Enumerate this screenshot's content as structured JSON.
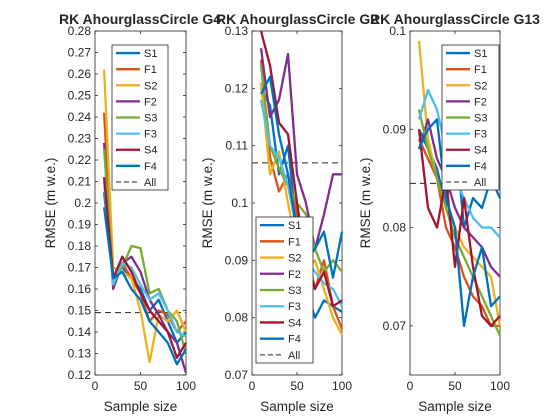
{
  "colors": {
    "S1": "#0072BD",
    "F1": "#D95319",
    "S2": "#EDB120",
    "F2": "#7E2F8E",
    "S3": "#77AC30",
    "F3": "#4DBEEE",
    "S4": "#A2142F",
    "F4": "#0072BD",
    "All": "#262626"
  },
  "chart_data": [
    {
      "type": "line",
      "title": "RK AhourglassCircle G4",
      "xlabel": "Sample size",
      "ylabel": "RMSE (m w.e.)",
      "xlim": [
        0,
        100
      ],
      "ylim": [
        0.12,
        0.28
      ],
      "xticks": [
        "0",
        "50",
        "100"
      ],
      "yticks": [
        "0.12",
        "0.13",
        "0.14",
        "0.15",
        "0.16",
        "0.17",
        "0.18",
        "0.19",
        "0.2",
        "0.21",
        "0.22",
        "0.23",
        "0.24",
        "0.25",
        "0.26",
        "0.27",
        "0.28"
      ],
      "x": [
        10,
        20,
        30,
        40,
        50,
        60,
        70,
        80,
        90,
        100
      ],
      "series": [
        {
          "name": "S1",
          "values": [
            0.205,
            0.165,
            0.17,
            0.165,
            0.16,
            0.15,
            0.155,
            0.145,
            0.135,
            0.14
          ]
        },
        {
          "name": "F1",
          "values": [
            0.242,
            0.165,
            0.172,
            0.165,
            0.158,
            0.145,
            0.15,
            0.148,
            0.14,
            0.145
          ]
        },
        {
          "name": "S2",
          "values": [
            0.262,
            0.17,
            0.168,
            0.165,
            0.15,
            0.126,
            0.148,
            0.145,
            0.15,
            0.14
          ]
        },
        {
          "name": "F2",
          "values": [
            0.228,
            0.16,
            0.172,
            0.175,
            0.168,
            0.155,
            0.148,
            0.14,
            0.135,
            0.121
          ]
        },
        {
          "name": "S3",
          "values": [
            0.225,
            0.165,
            0.17,
            0.18,
            0.179,
            0.158,
            0.16,
            0.15,
            0.145,
            0.13
          ]
        },
        {
          "name": "F3",
          "values": [
            0.21,
            0.162,
            0.172,
            0.17,
            0.162,
            0.155,
            0.158,
            0.15,
            0.14,
            0.138
          ]
        },
        {
          "name": "S4",
          "values": [
            0.212,
            0.165,
            0.175,
            0.168,
            0.158,
            0.15,
            0.145,
            0.14,
            0.128,
            0.135
          ]
        },
        {
          "name": "F4",
          "values": [
            0.198,
            0.165,
            0.168,
            0.16,
            0.155,
            0.145,
            0.14,
            0.135,
            0.125,
            0.132
          ]
        }
      ],
      "all": 0.149,
      "legend": [
        "S1",
        "F1",
        "S2",
        "F2",
        "S3",
        "F3",
        "S4",
        "F4",
        "All"
      ],
      "legend_placement": "top-right"
    },
    {
      "type": "line",
      "title": "RK AhourglassCircle G2",
      "xlabel": "Sample size",
      "ylabel": "RMSE (m w.e.)",
      "xlim": [
        0,
        100
      ],
      "ylim": [
        0.07,
        0.13
      ],
      "xticks": [
        "0",
        "50",
        "100"
      ],
      "yticks": [
        "0.07",
        "0.08",
        "0.09",
        "0.1",
        "0.11",
        "0.12",
        "0.13"
      ],
      "x": [
        10,
        20,
        30,
        40,
        50,
        60,
        70,
        80,
        90,
        100
      ],
      "series": [
        {
          "name": "S1",
          "values": [
            0.12,
            0.117,
            0.105,
            0.11,
            0.095,
            0.085,
            0.08,
            0.083,
            0.082,
            0.081
          ]
        },
        {
          "name": "F1",
          "values": [
            0.125,
            0.108,
            0.102,
            0.105,
            0.098,
            0.092,
            0.085,
            0.09,
            0.082,
            0.078
          ]
        },
        {
          "name": "S2",
          "values": [
            0.121,
            0.105,
            0.109,
            0.1,
            0.092,
            0.088,
            0.09,
            0.085,
            0.08,
            0.077
          ]
        },
        {
          "name": "F2",
          "values": [
            0.127,
            0.115,
            0.118,
            0.126,
            0.105,
            0.1,
            0.092,
            0.098,
            0.105,
            0.105
          ]
        },
        {
          "name": "S3",
          "values": [
            0.124,
            0.11,
            0.106,
            0.103,
            0.1,
            0.098,
            0.092,
            0.088,
            0.09,
            0.088
          ]
        },
        {
          "name": "F3",
          "values": [
            0.118,
            0.11,
            0.108,
            0.103,
            0.095,
            0.09,
            0.088,
            0.086,
            0.085,
            0.082
          ]
        },
        {
          "name": "S4",
          "values": [
            0.13,
            0.124,
            0.114,
            0.112,
            0.1,
            0.09,
            0.085,
            0.088,
            0.082,
            0.083
          ]
        },
        {
          "name": "F4",
          "values": [
            0.119,
            0.122,
            0.112,
            0.105,
            0.095,
            0.09,
            0.092,
            0.095,
            0.087,
            0.095
          ]
        }
      ],
      "all": 0.107,
      "legend": [
        "S1",
        "F1",
        "S2",
        "F2",
        "S3",
        "F3",
        "S4",
        "F4",
        "All"
      ],
      "legend_placement": "bottom-right"
    },
    {
      "type": "line",
      "title": "RK AhourglassCircle G13",
      "xlabel": "Sample size",
      "ylabel": "RMSE (m w.e.)",
      "xlim": [
        0,
        100
      ],
      "ylim": [
        0.065,
        0.1
      ],
      "xticks": [
        "0",
        "50",
        "100"
      ],
      "yticks": [
        "0.07",
        "0.08",
        "0.09",
        "0.1"
      ],
      "x": [
        10,
        20,
        30,
        40,
        50,
        60,
        70,
        80,
        90,
        100
      ],
      "series": [
        {
          "name": "S1",
          "values": [
            0.09,
            0.088,
            0.086,
            0.082,
            0.09,
            0.08,
            0.083,
            0.082,
            0.085,
            0.083
          ]
        },
        {
          "name": "F1",
          "values": [
            0.089,
            0.087,
            0.085,
            0.08,
            0.078,
            0.075,
            0.073,
            0.072,
            0.07,
            0.07
          ]
        },
        {
          "name": "S2",
          "values": [
            0.099,
            0.089,
            0.085,
            0.082,
            0.08,
            0.078,
            0.077,
            0.076,
            0.075,
            0.07
          ]
        },
        {
          "name": "F2",
          "values": [
            0.088,
            0.091,
            0.087,
            0.085,
            0.082,
            0.08,
            0.079,
            0.078,
            0.076,
            0.075
          ]
        },
        {
          "name": "S3",
          "values": [
            0.092,
            0.088,
            0.085,
            0.082,
            0.079,
            0.077,
            0.075,
            0.073,
            0.071,
            0.069
          ]
        },
        {
          "name": "F3",
          "values": [
            0.091,
            0.094,
            0.092,
            0.088,
            0.085,
            0.083,
            0.081,
            0.08,
            0.08,
            0.079
          ]
        },
        {
          "name": "S4",
          "values": [
            0.09,
            0.082,
            0.08,
            0.085,
            0.076,
            0.083,
            0.076,
            0.071,
            0.07,
            0.071
          ]
        },
        {
          "name": "F4",
          "values": [
            0.088,
            0.09,
            0.091,
            0.083,
            0.08,
            0.07,
            0.075,
            0.078,
            0.072,
            0.073
          ]
        }
      ],
      "all": 0.0845,
      "legend": [
        "S1",
        "F1",
        "S2",
        "F2",
        "S3",
        "F3",
        "S4",
        "F4",
        "All"
      ],
      "legend_placement": "top-right"
    }
  ]
}
